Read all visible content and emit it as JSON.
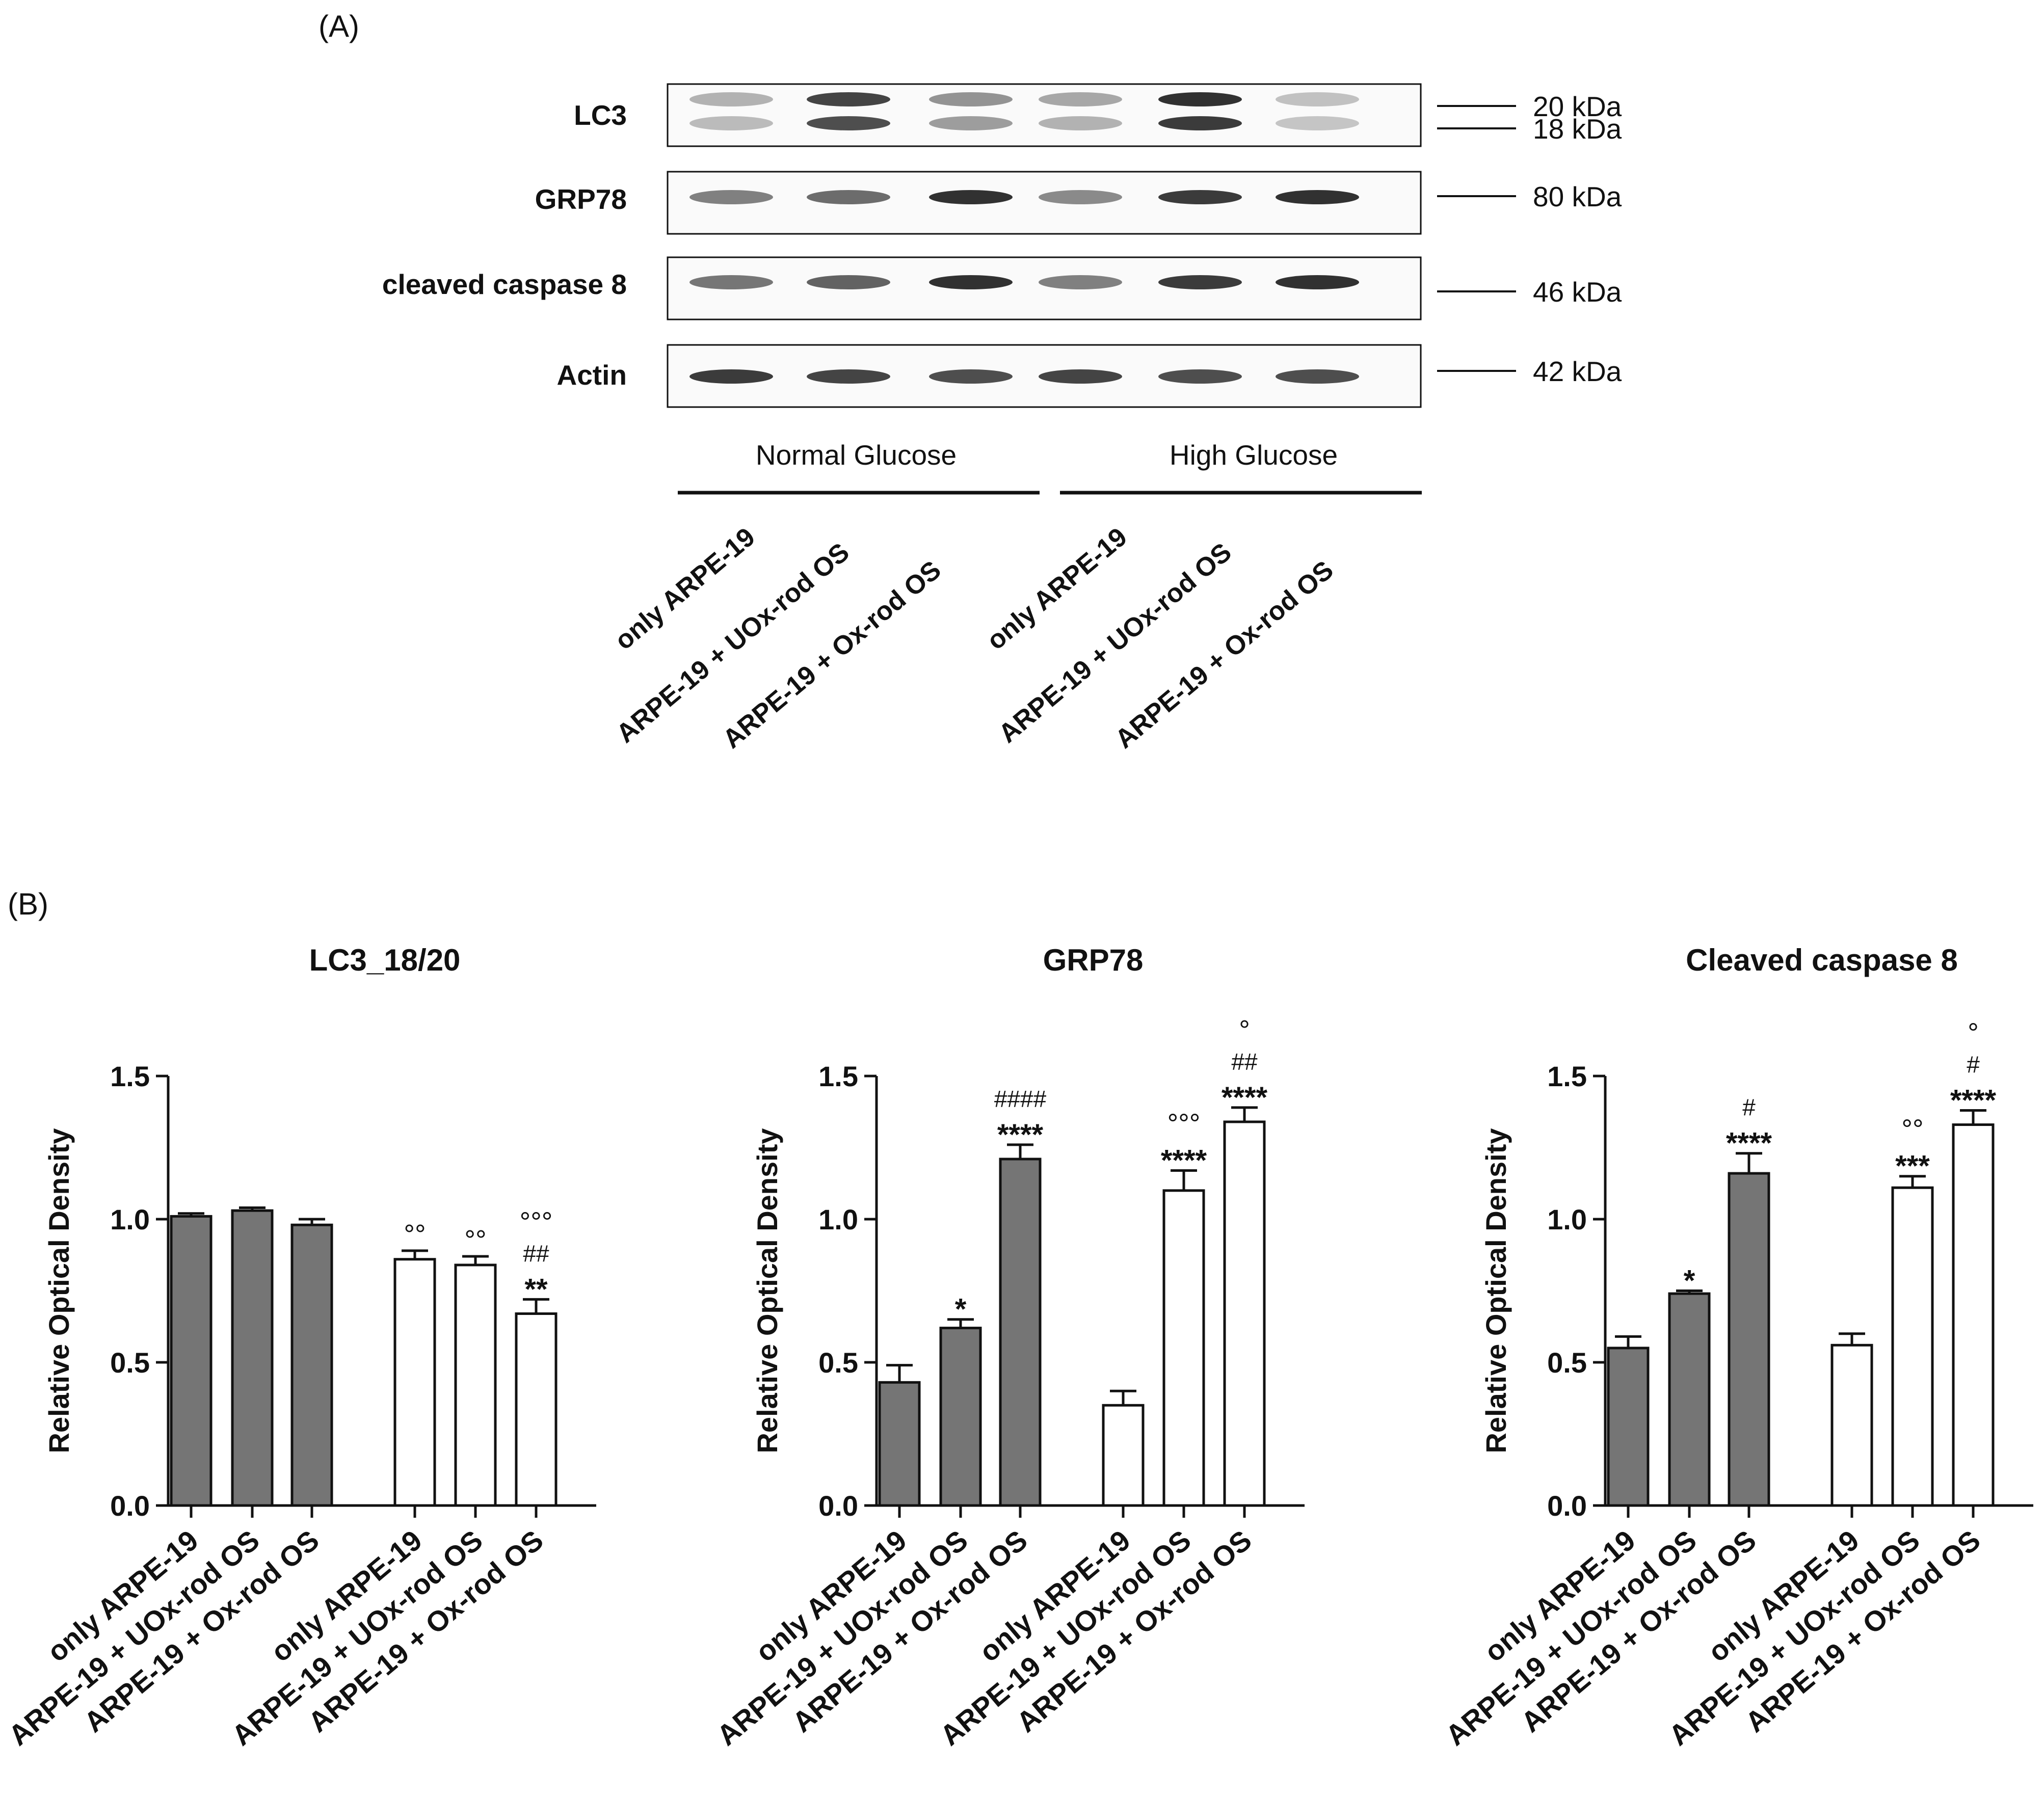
{
  "panel_a": {
    "label": "(A)",
    "blots": [
      {
        "name": "LC3",
        "markers": [
          "20 kDa",
          "18 kDa"
        ],
        "band_intensity": [
          [
            0.3,
            0.85,
            0.45,
            0.35,
            0.95,
            0.22
          ],
          [
            0.25,
            0.8,
            0.4,
            0.3,
            0.9,
            0.2
          ]
        ]
      },
      {
        "name": "GRP78",
        "markers": [
          "80 kDa"
        ],
        "band_intensity": [
          [
            0.55,
            0.65,
            0.95,
            0.5,
            0.9,
            0.95
          ]
        ]
      },
      {
        "name": "cleaved caspase 8",
        "markers": [
          "46 kDa"
        ],
        "band_intensity": [
          [
            0.6,
            0.7,
            0.95,
            0.55,
            0.9,
            0.95
          ]
        ]
      },
      {
        "name": "Actin",
        "markers": [
          "42 kDa"
        ],
        "band_intensity": [
          [
            0.9,
            0.85,
            0.8,
            0.85,
            0.8,
            0.8
          ]
        ]
      }
    ],
    "groups": [
      "Normal Glucose",
      "High Glucose"
    ],
    "lanes": [
      "only ARPE-19",
      "ARPE-19 + UOx-rod OS",
      "ARPE-19 + Ox-rod OS",
      "only ARPE-19",
      "ARPE-19 + UOx-rod OS",
      "ARPE-19 + Ox-rod OS"
    ]
  },
  "panel_b_label": "(B)",
  "chart_data": [
    {
      "type": "bar",
      "title": "LC3_18/20",
      "ylabel": "Relative Optical Density",
      "ylim": [
        0,
        1.5
      ],
      "yticks": [
        "0.0",
        "0.5",
        "1.0",
        "1.5"
      ],
      "categories": [
        "only ARPE-19",
        "ARPE-19 + UOx-rod OS",
        "ARPE-19 + Ox-rod OS",
        "only ARPE-19",
        "ARPE-19 + UOx-rod OS",
        "ARPE-19 + Ox-rod OS"
      ],
      "values": [
        1.01,
        1.03,
        0.98,
        0.86,
        0.84,
        0.67
      ],
      "errors": [
        0.01,
        0.01,
        0.02,
        0.03,
        0.03,
        0.05
      ],
      "bar_fill": [
        "#757575",
        "#757575",
        "#757575",
        "#ffffff",
        "#ffffff",
        "#ffffff"
      ],
      "annotations": [
        [],
        [],
        [],
        [
          "°°"
        ],
        [
          "°°"
        ],
        [
          "°°°",
          "##",
          "**"
        ]
      ]
    },
    {
      "type": "bar",
      "title": "GRP78",
      "ylabel": "Relative Optical Density",
      "ylim": [
        0,
        1.5
      ],
      "yticks": [
        "0.0",
        "0.5",
        "1.0",
        "1.5"
      ],
      "categories": [
        "only ARPE-19",
        "ARPE-19 + UOx-rod OS",
        "ARPE-19 + Ox-rod OS",
        "only ARPE-19",
        "ARPE-19 + UOx-rod OS",
        "ARPE-19 + Ox-rod OS"
      ],
      "values": [
        0.43,
        0.62,
        1.21,
        0.35,
        1.1,
        1.34
      ],
      "errors": [
        0.06,
        0.03,
        0.05,
        0.05,
        0.07,
        0.05
      ],
      "bar_fill": [
        "#757575",
        "#757575",
        "#757575",
        "#ffffff",
        "#ffffff",
        "#ffffff"
      ],
      "annotations": [
        [],
        [
          "*"
        ],
        [
          "####",
          "****"
        ],
        [],
        [
          "°°°",
          "****"
        ],
        [
          "°",
          "##",
          "****"
        ]
      ]
    },
    {
      "type": "bar",
      "title": "Cleaved caspase 8",
      "ylabel": "Relative Optical Density",
      "ylim": [
        0,
        1.5
      ],
      "yticks": [
        "0.0",
        "0.5",
        "1.0",
        "1.5"
      ],
      "categories": [
        "only ARPE-19",
        "ARPE-19 + UOx-rod OS",
        "ARPE-19 + Ox-rod OS",
        "only ARPE-19",
        "ARPE-19 + UOx-rod OS",
        "ARPE-19 + Ox-rod OS"
      ],
      "values": [
        0.55,
        0.74,
        1.16,
        0.56,
        1.11,
        1.33
      ],
      "errors": [
        0.04,
        0.01,
        0.07,
        0.04,
        0.04,
        0.05
      ],
      "bar_fill": [
        "#757575",
        "#757575",
        "#757575",
        "#ffffff",
        "#ffffff",
        "#ffffff"
      ],
      "annotations": [
        [],
        [
          "*"
        ],
        [
          "#",
          "****"
        ],
        [],
        [
          "°°",
          "***"
        ],
        [
          "°",
          "#",
          "****"
        ]
      ]
    }
  ]
}
